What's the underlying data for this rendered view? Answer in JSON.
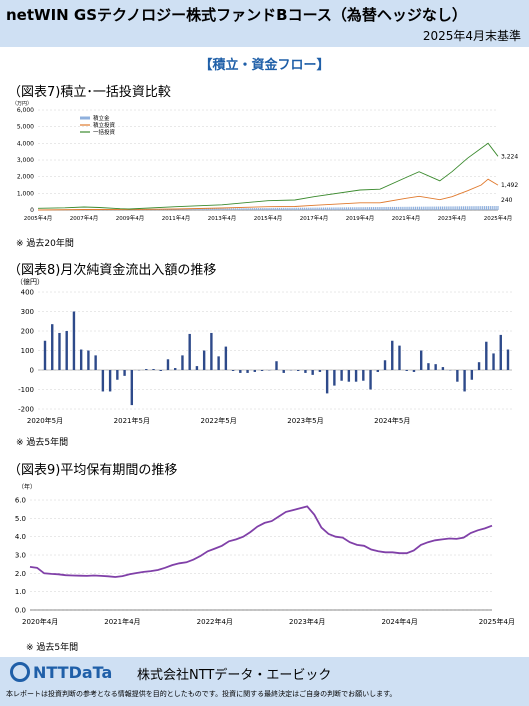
{
  "header": {
    "title": "netWIN GSテクノロジー株式ファンドBコース（為替ヘッジなし）",
    "date": "2025年4月末基準"
  },
  "section_title": "【積立・資金フロー】",
  "chart_titles": {
    "c1": "（図表7)積立･一括投資比較",
    "c2": "（図表8)月次純資金流出入額の推移",
    "c3": "（図表9)平均保有期間の推移"
  },
  "notes": {
    "c1": "※ 過去20年間",
    "c2": "※ 過去5年間",
    "c3": "※ 過去5年間"
  },
  "footer": {
    "logo_text": "NTTDaTa",
    "company": "株式会社NTTデータ・エービック",
    "disclaimer": "本レポートは投資判断の参考となる情報提供を目的としたものです。投資に関する最終決定はご自身の判断でお願いします。"
  },
  "colors": {
    "header_bg": "#cfe0f3",
    "accent": "#1f5fa8",
    "bar": "#2e4a8a",
    "tsumitate_kin": "#8fb0dd",
    "tsumitate_toshi": "#e07a2e",
    "ikkatsu": "#3b8a2e",
    "hold_line": "#8040a8"
  },
  "chart_data": [
    {
      "type": "line",
      "ylabel": "（万円）",
      "ylim": [
        0,
        6000
      ],
      "yticks": [
        0,
        1000,
        2000,
        3000,
        4000,
        5000,
        6000
      ],
      "ytick_labels": [
        "0",
        "1,000",
        "2,000",
        "3,000",
        "4,000",
        "5,000",
        "6,000"
      ],
      "xtick_labels": [
        "2005年4月",
        "2007年4月",
        "2009年4月",
        "2011年4月",
        "2013年4月",
        "2015年4月",
        "2017年4月",
        "2019年4月",
        "2021年4月",
        "2023年4月",
        "2025年4月"
      ],
      "legend": [
        "積立金",
        "積立投資",
        "一括投資"
      ],
      "legend_position": "top-left",
      "end_labels": [
        "3,224",
        "1,492",
        "240"
      ],
      "series": [
        {
          "name": "積立金",
          "kind": "bar",
          "x": [
            2005.33,
            2025.33
          ],
          "values": [
            1,
            240
          ]
        },
        {
          "name": "積立投資",
          "kind": "line",
          "x": [
            2005.33,
            2007.33,
            2008.0,
            2009.2,
            2011.33,
            2013.33,
            2015.33,
            2016.5,
            2017.33,
            2019.33,
            2020.2,
            2021.33,
            2021.9,
            2022.8,
            2023.33,
            2024.0,
            2024.6,
            2024.9,
            2025.33
          ],
          "values": [
            1,
            28,
            32,
            22,
            60,
            120,
            200,
            210,
            280,
            430,
            430,
            700,
            820,
            620,
            800,
            1150,
            1500,
            1850,
            1492
          ]
        },
        {
          "name": "一括投資",
          "kind": "line",
          "x": [
            2005.33,
            2006.5,
            2007.33,
            2008.0,
            2008.9,
            2009.3,
            2011.33,
            2013.33,
            2015.33,
            2016.5,
            2017.33,
            2019.33,
            2020.2,
            2021.33,
            2021.9,
            2022.8,
            2023.33,
            2024.0,
            2024.6,
            2024.9,
            2025.33
          ],
          "values": [
            100,
            130,
            180,
            150,
            80,
            60,
            200,
            310,
            560,
            600,
            800,
            1200,
            1250,
            1950,
            2300,
            1750,
            2300,
            3100,
            3700,
            4000,
            3224
          ]
        }
      ]
    },
    {
      "type": "bar",
      "ylabel": "（億円）",
      "ylim": [
        -200,
        400
      ],
      "yticks": [
        -200,
        -100,
        0,
        100,
        200,
        300,
        400
      ],
      "xtick_labels": [
        "2020年5月",
        "2021年5月",
        "2022年5月",
        "2023年5月",
        "2024年5月"
      ],
      "values": [
        150,
        235,
        190,
        200,
        300,
        105,
        100,
        75,
        -110,
        -110,
        -50,
        -30,
        -180,
        0,
        5,
        5,
        -5,
        55,
        10,
        75,
        185,
        20,
        100,
        190,
        70,
        120,
        -5,
        -15,
        -15,
        -10,
        -5,
        0,
        45,
        -15,
        0,
        -5,
        -15,
        -25,
        -10,
        -120,
        -80,
        -55,
        -60,
        -60,
        -55,
        -100,
        -10,
        50,
        150,
        125,
        -5,
        -10,
        100,
        35,
        30,
        15,
        0,
        -60,
        -110,
        -50,
        40,
        145,
        85,
        180,
        105
      ]
    },
    {
      "type": "line",
      "ylabel": "（年）",
      "ylim": [
        0,
        6
      ],
      "yticks": [
        0,
        1,
        2,
        3,
        4,
        5,
        6
      ],
      "ytick_labels": [
        "0.0",
        "1.0",
        "2.0",
        "3.0",
        "4.0",
        "5.0",
        "6.0"
      ],
      "xtick_labels": [
        "2020年4月",
        "2021年4月",
        "2022年4月",
        "2023年4月",
        "2024年4月",
        "2025年4月"
      ],
      "series": [
        {
          "name": "",
          "values": [
            2.35,
            2.3,
            2.0,
            1.97,
            1.95,
            1.9,
            1.88,
            1.87,
            1.86,
            1.88,
            1.86,
            1.84,
            1.8,
            1.85,
            1.95,
            2.02,
            2.08,
            2.12,
            2.18,
            2.3,
            2.45,
            2.55,
            2.6,
            2.75,
            2.95,
            3.2,
            3.35,
            3.5,
            3.75,
            3.85,
            4.0,
            4.25,
            4.55,
            4.75,
            4.85,
            5.1,
            5.35,
            5.45,
            5.55,
            5.65,
            5.2,
            4.5,
            4.15,
            4.0,
            3.95,
            3.7,
            3.55,
            3.5,
            3.3,
            3.2,
            3.15,
            3.15,
            3.1,
            3.1,
            3.25,
            3.55,
            3.7,
            3.8,
            3.85,
            3.9,
            3.88,
            3.95,
            4.2,
            4.35,
            4.45,
            4.6
          ]
        }
      ]
    }
  ]
}
